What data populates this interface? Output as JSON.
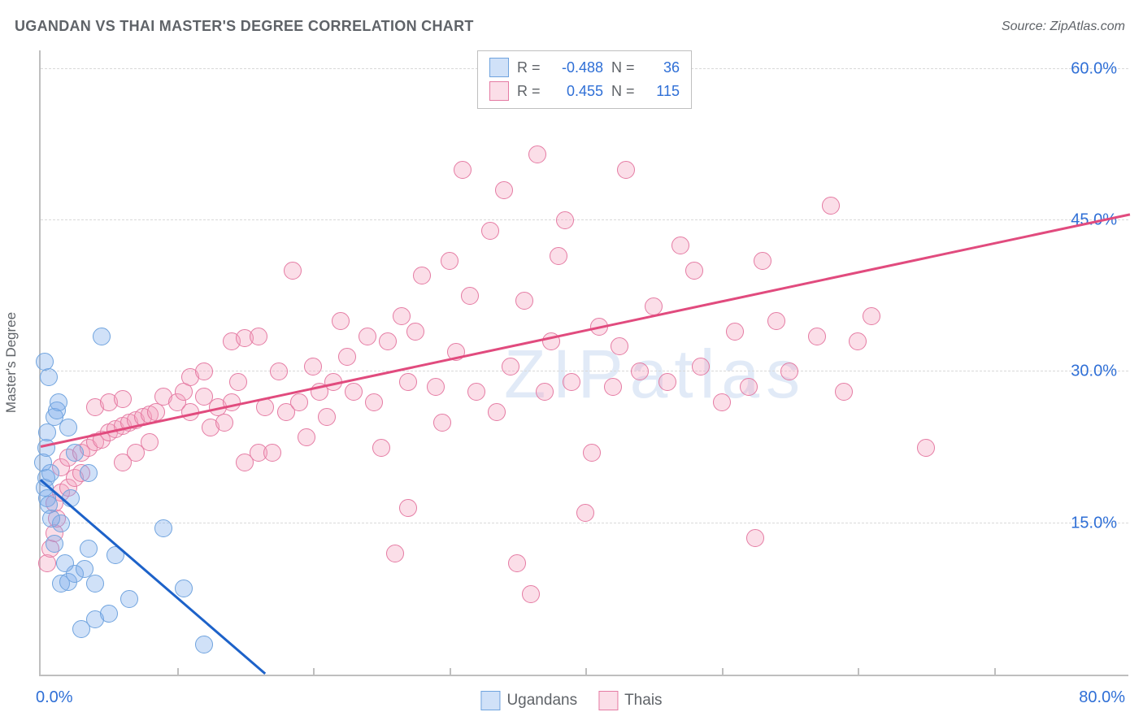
{
  "title": "UGANDAN VS THAI MASTER'S DEGREE CORRELATION CHART",
  "source": "Source: ZipAtlas.com",
  "watermark": "ZIPatlas",
  "y_axis_title": "Master's Degree",
  "chart": {
    "type": "scatter",
    "xlim": [
      0,
      80
    ],
    "ylim": [
      0,
      62
    ],
    "x_min_label": "0.0%",
    "x_max_label": "80.0%",
    "y_ticks": [
      {
        "v": 15,
        "label": "15.0%"
      },
      {
        "v": 30,
        "label": "30.0%"
      },
      {
        "v": 45,
        "label": "45.0%"
      },
      {
        "v": 60,
        "label": "60.0%"
      }
    ],
    "x_tick_step": 10,
    "background_color": "#ffffff",
    "grid_color": "#d9d9d9",
    "axis_color": "#bfbfbf",
    "marker_radius": 11,
    "marker_radius_large": 15,
    "marker_border_width": 1.2,
    "series": {
      "ugandans": {
        "label": "Ugandans",
        "fill": "rgba(120,170,235,0.35)",
        "stroke": "#6fa3de",
        "R": "-0.488",
        "N": "36",
        "trend": {
          "x1": 0,
          "y1": 19.2,
          "x2": 16.5,
          "y2": 0,
          "color": "#1d62c9",
          "width": 2.5
        },
        "points": [
          [
            0.3,
            18.5
          ],
          [
            0.4,
            19.5
          ],
          [
            0.5,
            17.5
          ],
          [
            0.6,
            16.8
          ],
          [
            0.7,
            20.0
          ],
          [
            0.2,
            21.0
          ],
          [
            0.4,
            22.5
          ],
          [
            0.5,
            24.0
          ],
          [
            1.0,
            25.5
          ],
          [
            1.2,
            26.2
          ],
          [
            1.3,
            27.0
          ],
          [
            2.0,
            24.5
          ],
          [
            2.5,
            22.0
          ],
          [
            3.5,
            20.0
          ],
          [
            0.6,
            29.5
          ],
          [
            4.5,
            33.5
          ],
          [
            0.3,
            31.0
          ],
          [
            1.5,
            9.0
          ],
          [
            2.0,
            9.2
          ],
          [
            2.5,
            10.0
          ],
          [
            3.2,
            10.5
          ],
          [
            4.0,
            9.0
          ],
          [
            3.5,
            12.5
          ],
          [
            5.5,
            11.8
          ],
          [
            1.0,
            13.0
          ],
          [
            4.0,
            5.5
          ],
          [
            5.0,
            6.0
          ],
          [
            3.0,
            4.5
          ],
          [
            9.0,
            14.5
          ],
          [
            10.5,
            8.5
          ],
          [
            12.0,
            3.0
          ],
          [
            1.5,
            15.0
          ],
          [
            2.2,
            17.5
          ],
          [
            0.8,
            15.5
          ],
          [
            1.8,
            11.0
          ],
          [
            6.5,
            7.5
          ]
        ]
      },
      "thais": {
        "label": "Thais",
        "fill": "rgba(244,160,190,0.35)",
        "stroke": "#e57ba3",
        "R": "0.455",
        "N": "115",
        "trend": {
          "x1": 0,
          "y1": 22.5,
          "x2": 80,
          "y2": 45.5,
          "color": "#e14b7e",
          "width": 2.5
        },
        "points": [
          [
            0.5,
            11.0
          ],
          [
            0.7,
            12.5
          ],
          [
            1.0,
            14.0
          ],
          [
            1.2,
            15.5
          ],
          [
            1.0,
            17.0
          ],
          [
            1.5,
            18.0
          ],
          [
            2.0,
            18.5
          ],
          [
            2.5,
            19.5
          ],
          [
            3.0,
            20.0
          ],
          [
            1.5,
            20.5
          ],
          [
            2.0,
            21.5
          ],
          [
            3.0,
            22.0
          ],
          [
            3.5,
            22.5
          ],
          [
            4.0,
            23.0
          ],
          [
            4.5,
            23.3
          ],
          [
            5.0,
            24.0
          ],
          [
            5.5,
            24.3
          ],
          [
            6.0,
            24.6
          ],
          [
            6.5,
            25.0
          ],
          [
            7.0,
            25.2
          ],
          [
            7.5,
            25.5
          ],
          [
            8.0,
            25.8
          ],
          [
            8.5,
            26.0
          ],
          [
            4.0,
            26.5
          ],
          [
            5.0,
            27.0
          ],
          [
            6.0,
            27.3
          ],
          [
            9.0,
            27.5
          ],
          [
            10.0,
            27.0
          ],
          [
            10.5,
            28.0
          ],
          [
            11.0,
            26.0
          ],
          [
            12.0,
            27.5
          ],
          [
            13.0,
            26.5
          ],
          [
            14.0,
            27.0
          ],
          [
            11.0,
            29.5
          ],
          [
            12.0,
            30.0
          ],
          [
            14.0,
            33.0
          ],
          [
            15.0,
            33.3
          ],
          [
            16.0,
            33.5
          ],
          [
            12.5,
            24.5
          ],
          [
            13.5,
            25.0
          ],
          [
            15.0,
            21.0
          ],
          [
            16.0,
            22.0
          ],
          [
            17.0,
            22.0
          ],
          [
            17.5,
            30.0
          ],
          [
            18.0,
            26.0
          ],
          [
            19.0,
            27.0
          ],
          [
            20.0,
            30.5
          ],
          [
            20.5,
            28.0
          ],
          [
            21.0,
            25.5
          ],
          [
            22.0,
            35.0
          ],
          [
            22.5,
            31.5
          ],
          [
            23.0,
            28.0
          ],
          [
            24.0,
            33.5
          ],
          [
            24.5,
            27.0
          ],
          [
            25.0,
            22.5
          ],
          [
            26.0,
            12.0
          ],
          [
            27.0,
            29.0
          ],
          [
            27.5,
            34.0
          ],
          [
            28.0,
            39.5
          ],
          [
            29.0,
            28.5
          ],
          [
            30.0,
            41.0
          ],
          [
            30.5,
            32.0
          ],
          [
            31.0,
            50.0
          ],
          [
            32.0,
            28.0
          ],
          [
            33.0,
            44.0
          ],
          [
            34.0,
            48.0
          ],
          [
            34.5,
            30.5
          ],
          [
            35.0,
            11.0
          ],
          [
            36.0,
            8.0
          ],
          [
            36.5,
            51.5
          ],
          [
            37.0,
            28.0
          ],
          [
            38.0,
            41.5
          ],
          [
            39.0,
            29.0
          ],
          [
            40.0,
            16.0
          ],
          [
            40.5,
            22.0
          ],
          [
            41.0,
            34.5
          ],
          [
            42.0,
            28.5
          ],
          [
            43.0,
            50.0
          ],
          [
            44.0,
            30.0
          ],
          [
            45.0,
            36.5
          ],
          [
            27.0,
            16.5
          ],
          [
            35.5,
            37.0
          ],
          [
            46.0,
            29.0
          ],
          [
            47.0,
            42.5
          ],
          [
            48.0,
            40.0
          ],
          [
            50.0,
            27.0
          ],
          [
            51.0,
            34.0
          ],
          [
            52.0,
            28.5
          ],
          [
            52.5,
            13.5
          ],
          [
            53.0,
            41.0
          ],
          [
            54.0,
            35.0
          ],
          [
            55.0,
            30.0
          ],
          [
            57.0,
            33.5
          ],
          [
            58.0,
            46.5
          ],
          [
            59.0,
            28.0
          ],
          [
            60.0,
            33.0
          ],
          [
            61.0,
            35.5
          ],
          [
            65.0,
            22.5
          ],
          [
            18.5,
            40.0
          ],
          [
            6.0,
            21.0
          ],
          [
            7.0,
            22.0
          ],
          [
            8.0,
            23.0
          ],
          [
            16.5,
            26.5
          ],
          [
            19.5,
            23.5
          ],
          [
            21.5,
            29.0
          ],
          [
            25.5,
            33.0
          ],
          [
            26.5,
            35.5
          ],
          [
            29.5,
            25.0
          ],
          [
            31.5,
            37.5
          ],
          [
            33.5,
            26.0
          ],
          [
            37.5,
            33.0
          ],
          [
            38.5,
            45.0
          ],
          [
            42.5,
            32.5
          ],
          [
            48.5,
            30.5
          ],
          [
            14.5,
            29.0
          ]
        ]
      }
    }
  }
}
